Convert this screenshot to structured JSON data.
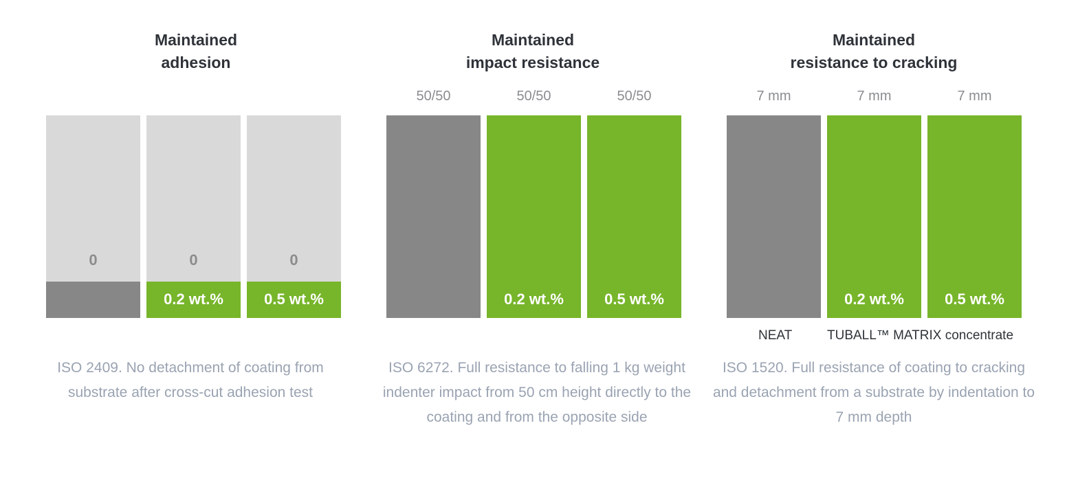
{
  "colors": {
    "neat": "#878787",
    "tuball": "#77b52a",
    "track": "#d9d9d9"
  },
  "legend": {
    "neat": "NEAT",
    "tuball": "TUBALL™ MATRIX concentrate"
  },
  "chart_data": [
    {
      "type": "bar",
      "title": "Maintained adhesion",
      "title_lines": [
        "Maintained",
        "adhesion"
      ],
      "categories": [
        "NEAT",
        "0.2 wt.%",
        "0.5 wt.%"
      ],
      "values": [
        0,
        0,
        0
      ],
      "value_labels": [
        "0",
        "0",
        "0"
      ],
      "bar_labels": [
        "",
        "0.2 wt.%",
        "0.5 wt.%"
      ],
      "fill_fraction": 0.18,
      "caption": "ISO 2409. No detachment of coating from substrate after cross-cut adhesion test"
    },
    {
      "type": "bar",
      "title": "Maintained impact resistance",
      "title_lines": [
        "Maintained",
        "impact resistance"
      ],
      "categories": [
        "NEAT",
        "0.2 wt.%",
        "0.5 wt.%"
      ],
      "values": [
        "50/50",
        "50/50",
        "50/50"
      ],
      "value_labels": [
        "50/50",
        "50/50",
        "50/50"
      ],
      "bar_labels": [
        "",
        "0.2 wt.%",
        "0.5 wt.%"
      ],
      "fill_fraction": 1,
      "caption": "ISO 6272. Full resistance to falling 1 kg weight indenter impact from 50 cm height directly to the coating and from the opposite side"
    },
    {
      "type": "bar",
      "title": "Maintained resistance to cracking",
      "title_lines": [
        "Maintained",
        "resistance to cracking"
      ],
      "categories": [
        "NEAT",
        "0.2 wt.%",
        "0.5 wt.%"
      ],
      "values": [
        7,
        7,
        7
      ],
      "value_labels": [
        "7 mm",
        "7 mm",
        "7 mm"
      ],
      "unit": "mm",
      "bar_labels": [
        "",
        "0.2 wt.%",
        "0.5 wt.%"
      ],
      "fill_fraction": 1,
      "caption": "ISO 1520. Full resistance of coating to cracking and detachment from a substrate by indentation to 7 mm depth"
    }
  ]
}
